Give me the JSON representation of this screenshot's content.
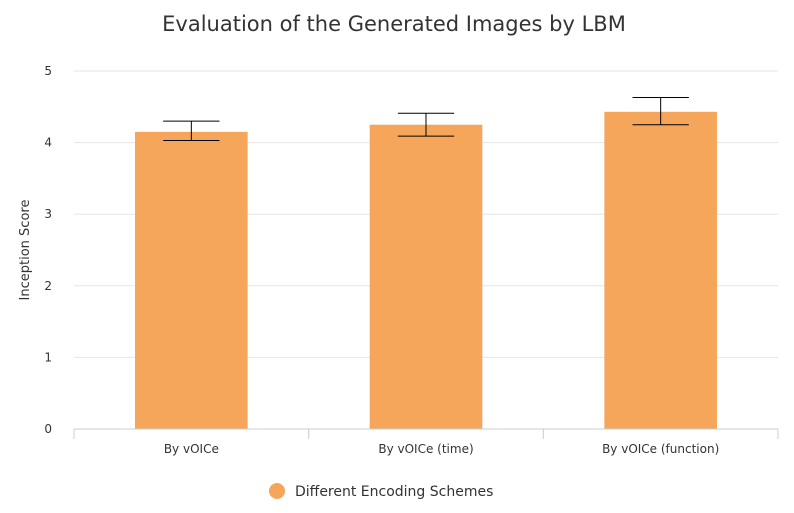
{
  "chart_data": {
    "type": "bar",
    "title": "Evaluation of the Generated Images by LBM",
    "xlabel": "",
    "ylabel": "Inception Score",
    "categories": [
      "By vOICe",
      "By vOICe (time)",
      "By vOICe (function)"
    ],
    "series": [
      {
        "name": "Different Encoding Schemes",
        "values": [
          4.15,
          4.25,
          4.43
        ],
        "error_low": [
          4.03,
          4.09,
          4.25
        ],
        "error_high": [
          4.3,
          4.41,
          4.63
        ],
        "color": "#F5A65B"
      }
    ],
    "ylim": [
      0,
      5
    ],
    "yticks": [
      0,
      1,
      2,
      3,
      4,
      5
    ],
    "grid": true,
    "legend_position": "bottom-center",
    "gridline_color": "#e6e6e6",
    "axis_color": "#cccccc",
    "error_bar_color": "#000000"
  }
}
